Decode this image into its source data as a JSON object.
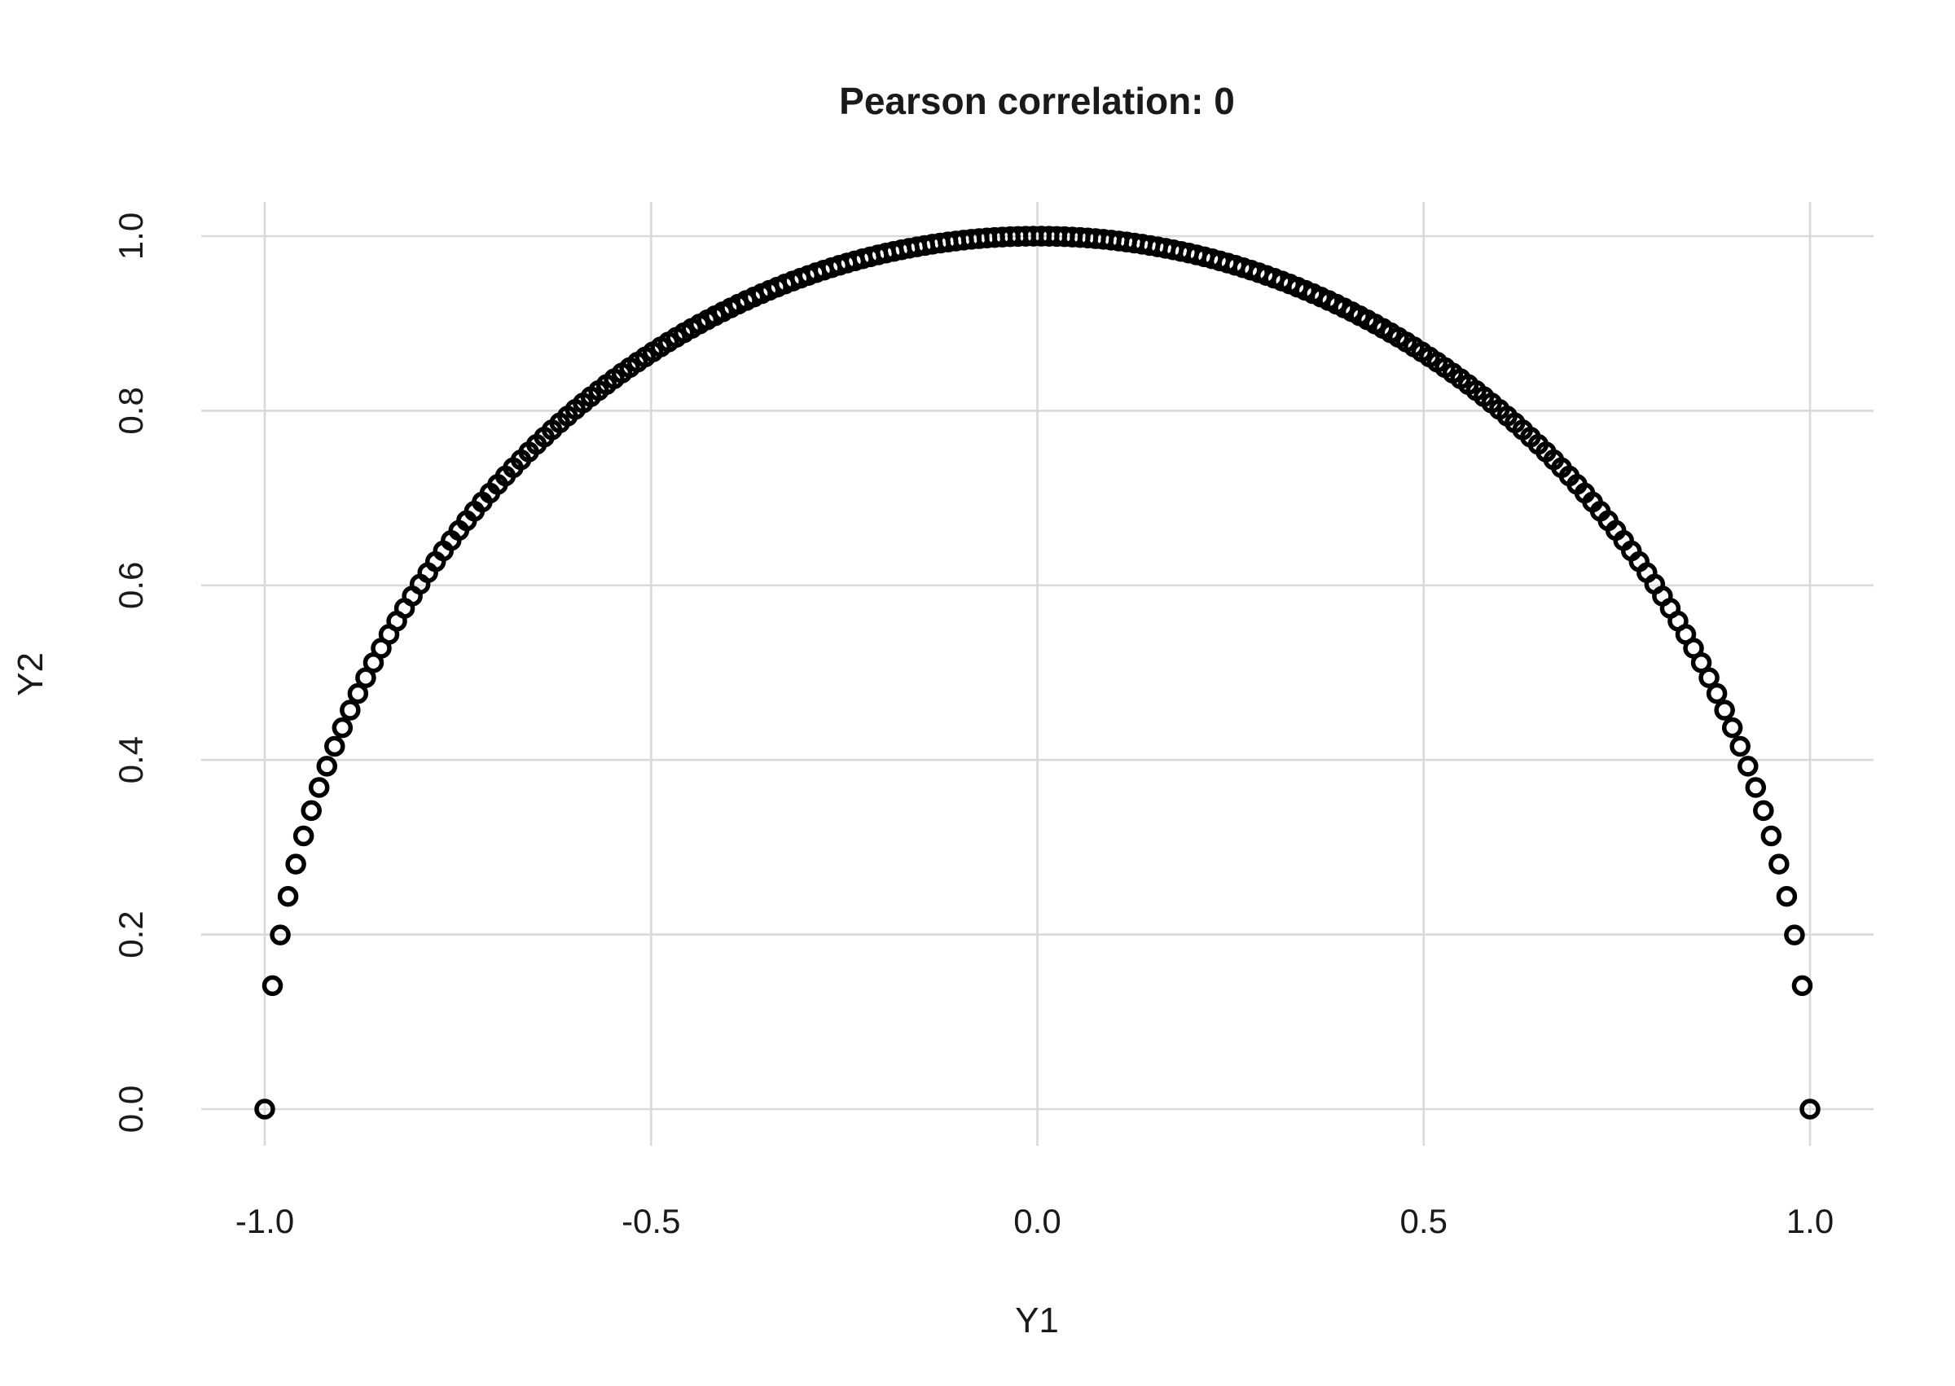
{
  "chart_data": {
    "type": "scatter",
    "title": "Pearson correlation: 0",
    "xlabel": "Y1",
    "ylabel": "Y2",
    "xlim": [
      -1.0,
      1.0
    ],
    "ylim": [
      0.0,
      1.0
    ],
    "x_ticks": [
      "-1.0",
      "-0.5",
      "0.0",
      "0.5",
      "1.0"
    ],
    "y_ticks": [
      "0.0",
      "0.2",
      "0.4",
      "0.6",
      "0.8",
      "1.0"
    ],
    "grid": true,
    "marker": "open-circle",
    "marker_color": "#000000",
    "n_points": 200,
    "series": [
      {
        "y_rule": "sqrt(1 - x^2)",
        "x": [
          -1.0,
          -0.98995,
          -0.9799,
          -0.96985,
          -0.9598,
          -0.94975,
          -0.9397,
          -0.92965,
          -0.9196,
          -0.90955,
          -0.8995,
          -0.88945,
          -0.8794,
          -0.86935,
          -0.8593,
          -0.84925,
          -0.8392,
          -0.82915,
          -0.8191,
          -0.80905,
          -0.79899,
          -0.78894,
          -0.77889,
          -0.76884,
          -0.75879,
          -0.74874,
          -0.73869,
          -0.72864,
          -0.71859,
          -0.70854,
          -0.69849,
          -0.68844,
          -0.67839,
          -0.66834,
          -0.65829,
          -0.64824,
          -0.63819,
          -0.62814,
          -0.61809,
          -0.60804,
          -0.59799,
          -0.58794,
          -0.57789,
          -0.56784,
          -0.55779,
          -0.54774,
          -0.53769,
          -0.52764,
          -0.51759,
          -0.50754,
          -0.49749,
          -0.48744,
          -0.47739,
          -0.46734,
          -0.45729,
          -0.44724,
          -0.43719,
          -0.42714,
          -0.41709,
          -0.40704,
          -0.39698,
          -0.38693,
          -0.37688,
          -0.36683,
          -0.35678,
          -0.34673,
          -0.33668,
          -0.32663,
          -0.31658,
          -0.30653,
          -0.29648,
          -0.28643,
          -0.27638,
          -0.26633,
          -0.25628,
          -0.24623,
          -0.23618,
          -0.22613,
          -0.21608,
          -0.20603,
          -0.19598,
          -0.18593,
          -0.17588,
          -0.16583,
          -0.15578,
          -0.14573,
          -0.13568,
          -0.12563,
          -0.11558,
          -0.10553,
          -0.09548,
          -0.08543,
          -0.07538,
          -0.06533,
          -0.05528,
          -0.04523,
          -0.03518,
          -0.02513,
          -0.01508,
          -0.00503,
          0.00503,
          0.01508,
          0.02513,
          0.03518,
          0.04523,
          0.05528,
          0.06533,
          0.07538,
          0.08543,
          0.09548,
          0.10553,
          0.11558,
          0.12563,
          0.13568,
          0.14573,
          0.15578,
          0.16583,
          0.17588,
          0.18593,
          0.19598,
          0.20603,
          0.21608,
          0.22613,
          0.23618,
          0.24623,
          0.25628,
          0.26633,
          0.27638,
          0.28643,
          0.29648,
          0.30653,
          0.31658,
          0.32663,
          0.33668,
          0.34673,
          0.35678,
          0.36683,
          0.37688,
          0.38693,
          0.39698,
          0.40704,
          0.41709,
          0.42714,
          0.43719,
          0.44724,
          0.45729,
          0.46734,
          0.47739,
          0.48744,
          0.49749,
          0.50754,
          0.51759,
          0.52764,
          0.53769,
          0.54774,
          0.55779,
          0.56784,
          0.57789,
          0.58794,
          0.59799,
          0.60804,
          0.61809,
          0.62814,
          0.63819,
          0.64824,
          0.65829,
          0.66834,
          0.67839,
          0.68844,
          0.69849,
          0.70854,
          0.71859,
          0.72864,
          0.73869,
          0.74874,
          0.75879,
          0.76884,
          0.77889,
          0.78894,
          0.79899,
          0.80905,
          0.8191,
          0.82915,
          0.8392,
          0.84925,
          0.8593,
          0.86935,
          0.8794,
          0.88945,
          0.8995,
          0.90955,
          0.9196,
          0.92965,
          0.9397,
          0.94975,
          0.9598,
          0.96985,
          0.9799,
          0.98995,
          1.0
        ]
      }
    ]
  }
}
